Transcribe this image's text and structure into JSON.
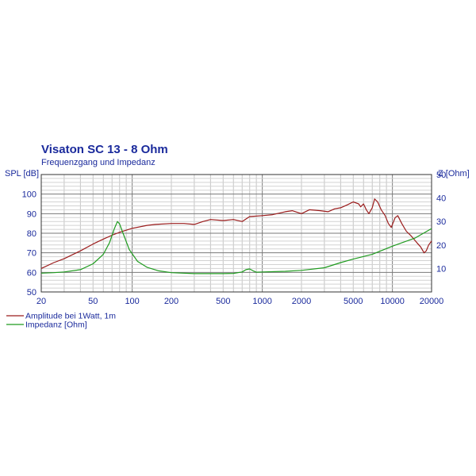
{
  "chart_data": {
    "type": "line",
    "title": "Visaton SC 13 - 8 Ohm",
    "subtitle": "Frequenzgang und Impedanz",
    "x_axis": {
      "scale": "log",
      "range": [
        20,
        20000
      ],
      "tick_labels": [
        "20",
        "50",
        "100",
        "200",
        "500",
        "1000",
        "2000",
        "5000",
        "10000",
        "20000"
      ]
    },
    "y_left": {
      "label": "SPL [dB]",
      "range": [
        50,
        110
      ],
      "tick_labels": [
        "50",
        "60",
        "70",
        "80",
        "90",
        "100"
      ]
    },
    "y_right": {
      "label": "Z [Ohm]",
      "range": [
        0,
        50
      ],
      "tick_labels": [
        "10",
        "20",
        "30",
        "40",
        "50"
      ]
    },
    "grid": true,
    "legend_position": "bottom-left",
    "series": [
      {
        "name": "Amplitude bei 1Watt, 1m",
        "color": "#9b1c1c",
        "axis": "left",
        "points": [
          [
            20,
            62
          ],
          [
            25,
            65
          ],
          [
            30,
            67
          ],
          [
            40,
            71
          ],
          [
            50,
            74.5
          ],
          [
            60,
            77
          ],
          [
            70,
            79
          ],
          [
            80,
            80.5
          ],
          [
            100,
            82.5
          ],
          [
            130,
            84
          ],
          [
            150,
            84.5
          ],
          [
            200,
            85
          ],
          [
            250,
            85
          ],
          [
            300,
            84.5
          ],
          [
            350,
            86
          ],
          [
            400,
            87
          ],
          [
            500,
            86.5
          ],
          [
            600,
            87
          ],
          [
            700,
            86
          ],
          [
            800,
            88.5
          ],
          [
            1000,
            89
          ],
          [
            1200,
            89.5
          ],
          [
            1500,
            91
          ],
          [
            1700,
            91.5
          ],
          [
            2000,
            90
          ],
          [
            2300,
            92
          ],
          [
            2800,
            91.5
          ],
          [
            3200,
            91
          ],
          [
            3600,
            92.5
          ],
          [
            4000,
            93
          ],
          [
            4500,
            94.5
          ],
          [
            5000,
            96
          ],
          [
            5500,
            95
          ],
          [
            5700,
            93.5
          ],
          [
            6000,
            95
          ],
          [
            6300,
            92
          ],
          [
            6600,
            90
          ],
          [
            7000,
            93
          ],
          [
            7300,
            97.5
          ],
          [
            7700,
            96
          ],
          [
            8200,
            92
          ],
          [
            8800,
            89
          ],
          [
            9300,
            85
          ],
          [
            9800,
            83
          ],
          [
            10500,
            88
          ],
          [
            11000,
            89
          ],
          [
            11800,
            85
          ],
          [
            12800,
            81
          ],
          [
            14000,
            78.5
          ],
          [
            15500,
            75
          ],
          [
            16500,
            73
          ],
          [
            17500,
            70
          ],
          [
            18200,
            71
          ],
          [
            19000,
            74
          ],
          [
            20000,
            76
          ]
        ]
      },
      {
        "name": "Impedanz [Ohm]",
        "color": "#1f9b1f",
        "axis": "right",
        "points": [
          [
            20,
            8
          ],
          [
            25,
            8.2
          ],
          [
            30,
            8.5
          ],
          [
            40,
            9.5
          ],
          [
            50,
            12
          ],
          [
            60,
            16
          ],
          [
            67,
            21
          ],
          [
            73,
            27
          ],
          [
            77,
            30
          ],
          [
            80,
            29
          ],
          [
            85,
            25
          ],
          [
            95,
            18
          ],
          [
            110,
            13
          ],
          [
            130,
            10.5
          ],
          [
            160,
            9
          ],
          [
            200,
            8.2
          ],
          [
            300,
            7.8
          ],
          [
            500,
            7.8
          ],
          [
            600,
            7.9
          ],
          [
            700,
            8.5
          ],
          [
            750,
            9.5
          ],
          [
            800,
            9.8
          ],
          [
            850,
            9
          ],
          [
            900,
            8.4
          ],
          [
            1000,
            8.5
          ],
          [
            1500,
            8.8
          ],
          [
            2000,
            9.2
          ],
          [
            3000,
            10.3
          ],
          [
            4000,
            12.5
          ],
          [
            5000,
            14
          ],
          [
            7000,
            16
          ],
          [
            10000,
            19.5
          ],
          [
            15000,
            23
          ],
          [
            20000,
            27
          ]
        ]
      }
    ]
  }
}
